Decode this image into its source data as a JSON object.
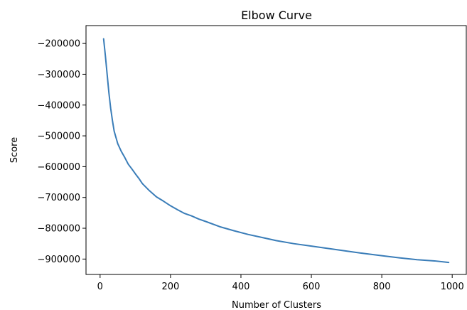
{
  "chart_data": {
    "type": "line",
    "title": "Elbow Curve",
    "xlabel": "Number of Clusters",
    "ylabel": "Score",
    "xlim": [
      -40,
      1040
    ],
    "ylim": [
      -950000,
      -142000
    ],
    "xticks": [
      0,
      200,
      400,
      600,
      800,
      1000
    ],
    "xtick_labels": [
      "0",
      "200",
      "400",
      "600",
      "800",
      "1000"
    ],
    "yticks": [
      -200000,
      -300000,
      -400000,
      -500000,
      -600000,
      -700000,
      -800000,
      -900000
    ],
    "ytick_labels": [
      "−200000",
      "−300000",
      "−400000",
      "−500000",
      "−600000",
      "−700000",
      "−800000",
      "−900000"
    ],
    "grid": false,
    "series": [
      {
        "color": "#3a7db8",
        "x": [
          10,
          15,
          20,
          25,
          30,
          35,
          40,
          45,
          50,
          60,
          70,
          80,
          90,
          100,
          110,
          120,
          140,
          160,
          180,
          200,
          220,
          240,
          260,
          280,
          300,
          340,
          380,
          420,
          460,
          500,
          550,
          600,
          650,
          700,
          750,
          800,
          850,
          900,
          950,
          990
        ],
        "y": [
          -185000,
          -240000,
          -300000,
          -360000,
          -410000,
          -450000,
          -485000,
          -505000,
          -525000,
          -550000,
          -570000,
          -592000,
          -607000,
          -623000,
          -638000,
          -655000,
          -678000,
          -698000,
          -712000,
          -727000,
          -740000,
          -752000,
          -760000,
          -770000,
          -778000,
          -795000,
          -808000,
          -820000,
          -830000,
          -840000,
          -850000,
          -858000,
          -866000,
          -874000,
          -882000,
          -889000,
          -896000,
          -902000,
          -906000,
          -911000
        ]
      }
    ]
  }
}
